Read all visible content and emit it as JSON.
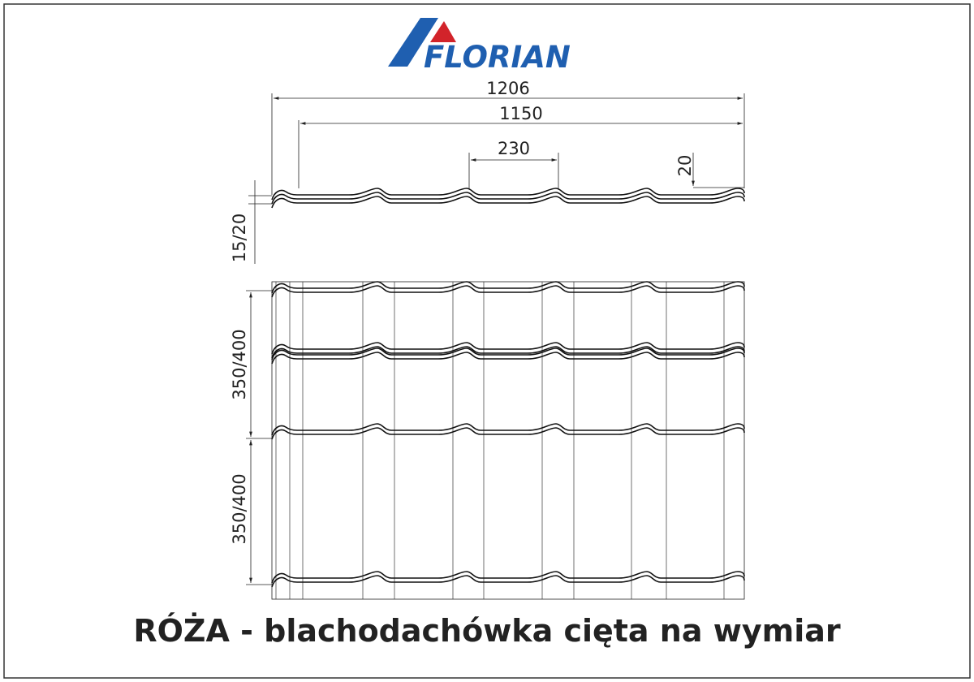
{
  "logo": {
    "name": "FLORIAN"
  },
  "dimensions": {
    "total_width": "1206",
    "effective_width": "1150",
    "wave_pitch": "230",
    "wave_height": "20",
    "step_height": "15/20",
    "module_lengths": [
      "350/400",
      "350/400"
    ]
  },
  "title": "RÓŻA - blachodachówka cięta na wymiar"
}
